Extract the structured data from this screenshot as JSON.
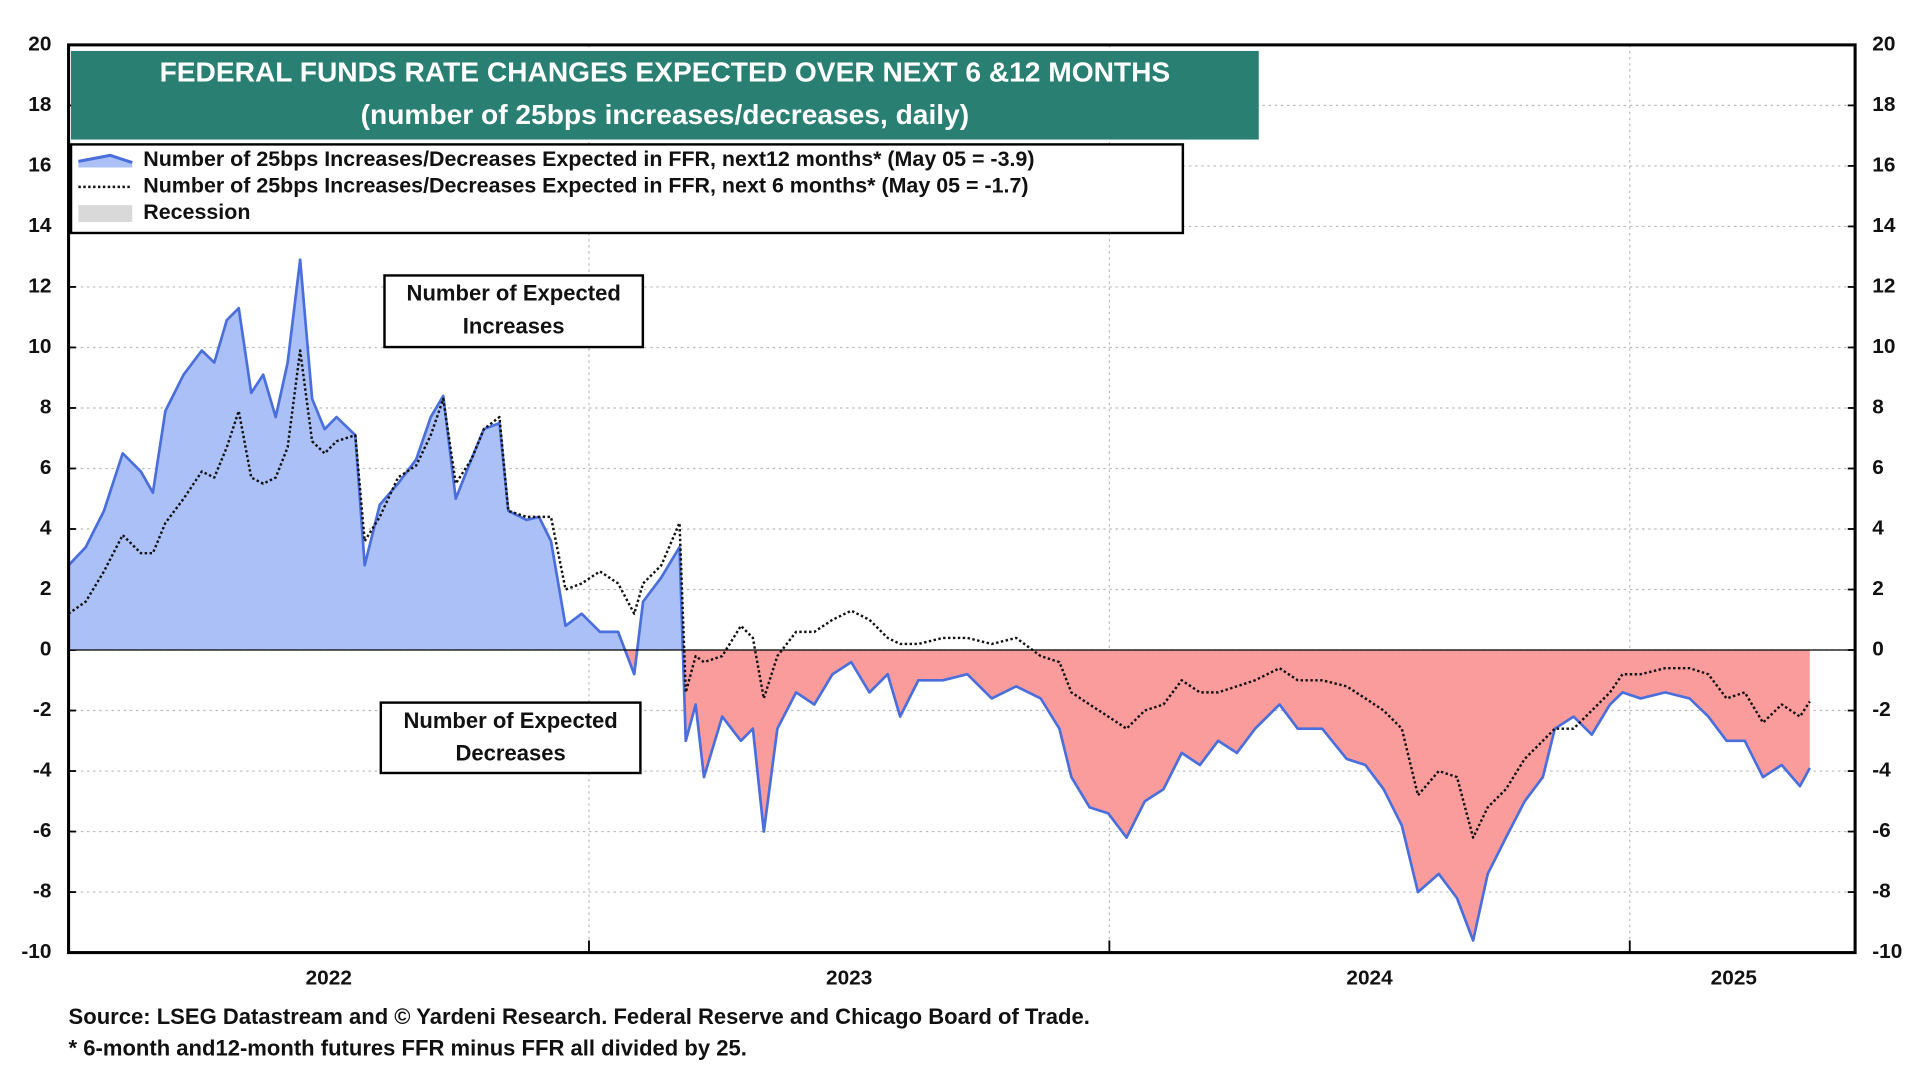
{
  "chart_data": {
    "type": "line",
    "title": "FEDERAL FUNDS RATE CHANGES EXPECTED OVER NEXT 6 &12 MONTHS",
    "subtitle": "(number of 25bps increases/decreases, daily)",
    "notes": [
      "Source: LSEG Datastream and © Yardeni Research. Federal Reserve and Chicago Board of Trade.",
      "* 6-month and12-month futures FFR minus FFR all divided by 25."
    ],
    "annotations": [
      [
        "Number of Expected",
        "Increases"
      ],
      [
        "Number of Expected",
        "Decreases"
      ]
    ],
    "x": [
      2022.0,
      2022.033,
      2022.068,
      2022.104,
      2022.139,
      2022.162,
      2022.186,
      2022.221,
      2022.256,
      2022.28,
      2022.304,
      2022.327,
      2022.351,
      2022.374,
      2022.398,
      2022.421,
      2022.445,
      2022.468,
      2022.492,
      2022.515,
      2022.551,
      2022.569,
      2022.598,
      2022.633,
      2022.668,
      2022.696,
      2022.72,
      2022.744,
      2022.774,
      2022.798,
      2022.828,
      2022.845,
      2022.88,
      2022.904,
      2022.927,
      2022.955,
      2022.986,
      2023.021,
      2023.056,
      2023.087,
      2023.104,
      2023.139,
      2023.174,
      2023.186,
      2023.205,
      2023.221,
      2023.256,
      2023.292,
      2023.315,
      2023.336,
      2023.362,
      2023.398,
      2023.433,
      2023.468,
      2023.504,
      2023.539,
      2023.574,
      2023.598,
      2023.633,
      2023.68,
      2023.727,
      2023.774,
      2023.821,
      2023.868,
      2023.904,
      2023.927,
      2023.962,
      2023.998,
      2024.033,
      2024.068,
      2024.104,
      2024.139,
      2024.174,
      2024.209,
      2024.245,
      2024.28,
      2024.327,
      2024.362,
      2024.409,
      2024.456,
      2024.492,
      2024.527,
      2024.562,
      2024.593,
      2024.633,
      2024.668,
      2024.699,
      2024.727,
      2024.762,
      2024.798,
      2024.833,
      2024.856,
      2024.892,
      2024.927,
      2024.962,
      2024.986,
      2025.021,
      2025.068,
      2025.115,
      2025.151,
      2025.186,
      2025.221,
      2025.256,
      2025.292,
      2025.327,
      2025.346
    ],
    "series": [
      {
        "name": "Number of 25bps Increases/Decreases Expected in FFR, next12 months* (May 05 = -3.9)",
        "color": "#4a6fdc",
        "positive_fill": "#abc0f7",
        "negative_fill": "#fb9c9c",
        "style": "solid",
        "values": [
          2.8,
          3.4,
          4.6,
          6.5,
          5.9,
          5.2,
          7.9,
          9.1,
          9.9,
          9.5,
          10.9,
          11.3,
          8.5,
          9.1,
          7.7,
          9.5,
          12.9,
          8.3,
          7.3,
          7.7,
          7.1,
          2.8,
          4.8,
          5.5,
          6.3,
          7.7,
          8.4,
          5.0,
          6.3,
          7.3,
          7.5,
          4.6,
          4.3,
          4.4,
          3.6,
          0.8,
          1.2,
          0.6,
          0.6,
          -0.8,
          1.6,
          2.4,
          3.4,
          -3.0,
          -1.8,
          -4.2,
          -2.2,
          -3.0,
          -2.6,
          -6.0,
          -2.6,
          -1.4,
          -1.8,
          -0.8,
          -0.4,
          -1.4,
          -0.8,
          -2.2,
          -1.0,
          -1.0,
          -0.8,
          -1.6,
          -1.2,
          -1.6,
          -2.6,
          -4.2,
          -5.2,
          -5.4,
          -6.2,
          -5.0,
          -4.6,
          -3.4,
          -3.8,
          -3.0,
          -3.4,
          -2.6,
          -1.8,
          -2.6,
          -2.6,
          -3.6,
          -3.8,
          -4.6,
          -5.8,
          -8.0,
          -7.4,
          -8.2,
          -9.6,
          -7.4,
          -6.2,
          -5.0,
          -4.2,
          -2.6,
          -2.2,
          -2.8,
          -1.8,
          -1.4,
          -1.6,
          -1.4,
          -1.6,
          -2.2,
          -3.0,
          -3.0,
          -4.2,
          -3.8,
          -4.5,
          -3.9
        ]
      },
      {
        "name": "Number of 25bps Increases/Decreases Expected in FFR, next 6 months* (May 05 = -1.7)",
        "color": "#111111",
        "style": "dotted",
        "values": [
          1.2,
          1.6,
          2.6,
          3.8,
          3.2,
          3.2,
          4.2,
          5.0,
          5.9,
          5.7,
          6.7,
          7.9,
          5.7,
          5.5,
          5.7,
          6.7,
          9.9,
          6.9,
          6.5,
          6.9,
          7.1,
          3.6,
          4.4,
          5.7,
          6.1,
          7.1,
          8.3,
          5.5,
          6.3,
          7.3,
          7.7,
          4.6,
          4.4,
          4.4,
          4.4,
          2.0,
          2.2,
          2.6,
          2.2,
          1.2,
          2.2,
          2.8,
          4.2,
          -1.4,
          -0.2,
          -0.4,
          -0.2,
          0.8,
          0.4,
          -1.6,
          -0.2,
          0.6,
          0.6,
          1.0,
          1.3,
          1.0,
          0.4,
          0.2,
          0.2,
          0.4,
          0.4,
          0.2,
          0.4,
          -0.2,
          -0.4,
          -1.4,
          -1.8,
          -2.2,
          -2.6,
          -2.0,
          -1.8,
          -1.0,
          -1.4,
          -1.4,
          -1.2,
          -1.0,
          -0.6,
          -1.0,
          -1.0,
          -1.2,
          -1.6,
          -2.0,
          -2.6,
          -4.8,
          -4.0,
          -4.2,
          -6.2,
          -5.2,
          -4.6,
          -3.6,
          -3.0,
          -2.6,
          -2.6,
          -2.0,
          -1.4,
          -0.8,
          -0.8,
          -0.6,
          -0.6,
          -0.8,
          -1.6,
          -1.4,
          -2.4,
          -1.8,
          -2.2,
          -1.7
        ]
      }
    ],
    "recession": {
      "name": "Recession",
      "color": "#d9d9d9"
    },
    "xlim": [
      2022,
      2025.433
    ],
    "xticks": [
      {
        "value": 2022.5,
        "label": "2022"
      },
      {
        "value": 2023.5,
        "label": "2023"
      },
      {
        "value": 2024.5,
        "label": "2024"
      },
      {
        "value": 2025.2,
        "label": "2025"
      }
    ],
    "x_boundaries": [
      2023,
      2024,
      2025
    ],
    "ylim": [
      -10,
      20
    ],
    "yticks": [
      -10,
      -8,
      -6,
      -4,
      -2,
      0,
      2,
      4,
      6,
      8,
      10,
      12,
      14,
      16,
      18,
      20
    ],
    "grid": true,
    "title_color": "#2a7f73"
  }
}
